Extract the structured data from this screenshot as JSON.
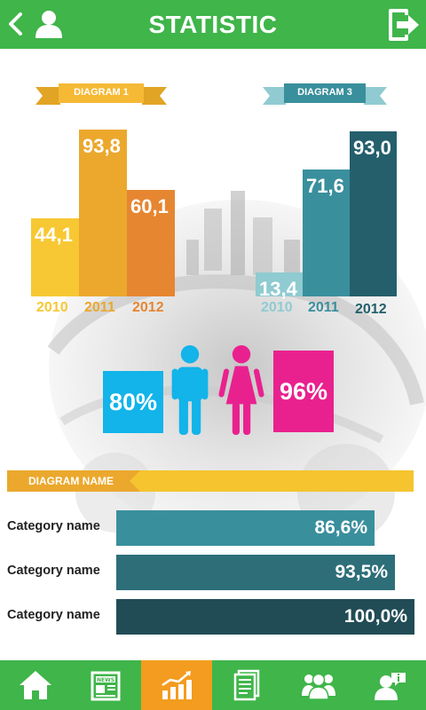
{
  "header": {
    "title": "STATISTIC",
    "back_icon": "chevron-left-icon",
    "user_icon": "user-icon",
    "exit_icon": "exit-icon"
  },
  "colors": {
    "green": "#3fb54a",
    "orange_active": "#f39c1f",
    "d1_2010": "#f7c833",
    "d1_2011": "#eba82d",
    "d1_2012": "#e68631",
    "d3_2010": "#8fcbd1",
    "d3_2011": "#3a8f9d",
    "d3_2012": "#245f6b",
    "cyan": "#12b4ea",
    "pink": "#e9218f",
    "h1": "#3a8f9d",
    "h2": "#2d6e79",
    "h3": "#214c56"
  },
  "chart_data": [
    {
      "type": "bar",
      "title": "DIAGRAM 1",
      "categories": [
        "2010",
        "2011",
        "2012"
      ],
      "values": [
        44.1,
        93.8,
        60.1
      ],
      "labels": [
        "44,1",
        "93,8",
        "60,1"
      ]
    },
    {
      "type": "bar",
      "title": "DIAGRAM 3",
      "categories": [
        "2010",
        "2011",
        "2012"
      ],
      "values": [
        13.4,
        71.6,
        93.0
      ],
      "labels": [
        "13,4",
        "71,6",
        "93,0"
      ]
    },
    {
      "type": "bar",
      "orientation": "horizontal",
      "title": "DIAGRAM NAME",
      "categories": [
        "Category name",
        "Category name",
        "Category name"
      ],
      "values": [
        86.6,
        93.5,
        100.0
      ],
      "labels": [
        "86,6%",
        "93,5%",
        "100,0%"
      ]
    }
  ],
  "people": {
    "male_pct": "80%",
    "female_pct": "96%",
    "male_icon": "male-icon",
    "female_icon": "female-icon"
  },
  "nav": {
    "items": [
      {
        "name": "home",
        "icon": "home-icon"
      },
      {
        "name": "news",
        "icon": "news-icon",
        "text": "NEWS"
      },
      {
        "name": "statistic",
        "icon": "chart-icon",
        "active": true
      },
      {
        "name": "documents",
        "icon": "document-icon"
      },
      {
        "name": "community",
        "icon": "group-icon"
      },
      {
        "name": "info",
        "icon": "info-user-icon"
      }
    ]
  }
}
